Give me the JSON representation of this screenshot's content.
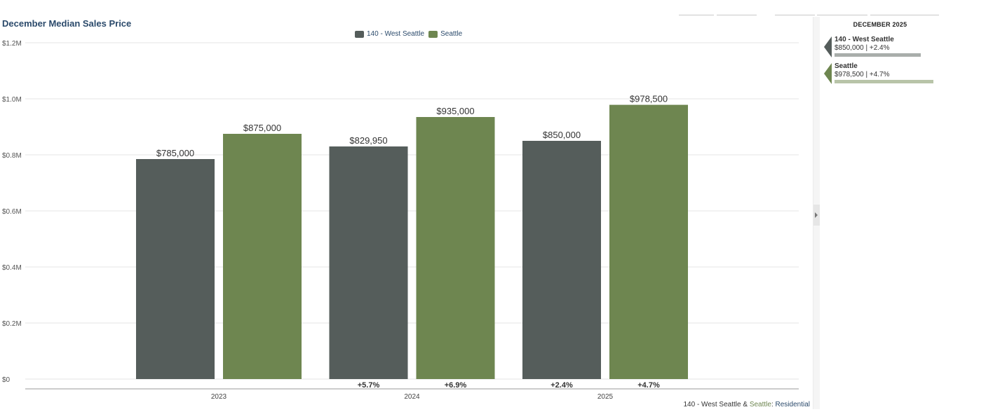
{
  "chart_data": {
    "type": "bar",
    "title": "December Median Sales Price",
    "categories": [
      "2023",
      "2024",
      "2025"
    ],
    "series": [
      {
        "name": "140 - West Seattle",
        "color": "#555d5b",
        "values": [
          785000,
          829950,
          850000
        ],
        "labels": [
          "$785,000",
          "$829,950",
          "$850,000"
        ],
        "changes": [
          "",
          "+5.7%",
          "+2.4%"
        ]
      },
      {
        "name": "Seattle",
        "color": "#6e8650",
        "values": [
          875000,
          935000,
          978500
        ],
        "labels": [
          "$875,000",
          "$935,000",
          "$978,500"
        ],
        "changes": [
          "",
          "+6.9%",
          "+4.7%"
        ]
      }
    ],
    "ylim": [
      0,
      1200000
    ],
    "yticks": [
      0,
      200000,
      400000,
      600000,
      800000,
      1000000,
      1200000
    ],
    "ytick_labels": [
      "$0",
      "$0.2M",
      "$0.4M",
      "$0.6M",
      "$0.8M",
      "$1.0M",
      "$1.2M"
    ],
    "xlabel": "",
    "ylabel": "",
    "grid": true,
    "legend": "top-center"
  },
  "footer": {
    "area": "140 - West Seattle",
    "amp": " & ",
    "city": "Seattle",
    "colon": ": ",
    "type": "Residential"
  },
  "panel": {
    "title": "DECEMBER 2025",
    "items": [
      {
        "name": "140 - West Seattle",
        "value": "$850,000 | +2.4%",
        "color": "#555d5b",
        "bar_color": "#a9aeab",
        "fraction": 0.869
      },
      {
        "name": "Seattle",
        "value": "$978,500 | +4.7%",
        "color": "#6e8650",
        "bar_color": "#b8c4a8",
        "fraction": 1.0
      }
    ]
  }
}
